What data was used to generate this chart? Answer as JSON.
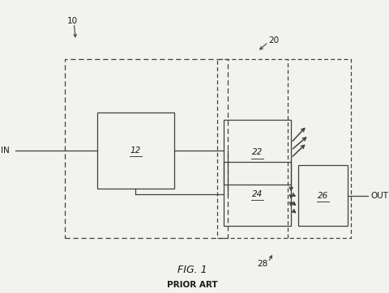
{
  "fig_width": 4.8,
  "fig_height": 3.62,
  "dpi": 100,
  "bg_color": "#f2f2ee",
  "title": "FIG. 1",
  "subtitle": "PRIOR ART",
  "label_10": "10",
  "label_12": "12",
  "label_20": "20",
  "label_22": "22",
  "label_24": "24",
  "label_26": "26",
  "label_28": "28",
  "label_IN": "IN",
  "label_OUT": "OUT"
}
